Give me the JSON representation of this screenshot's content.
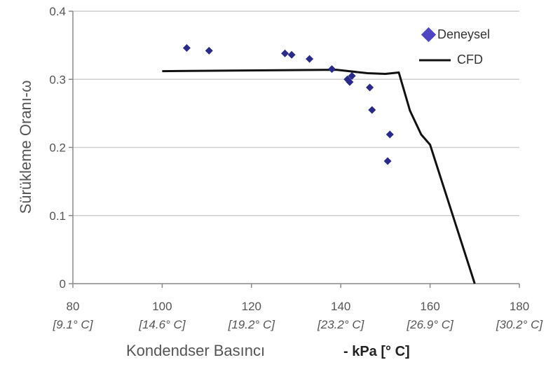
{
  "chart_data": {
    "type": "scatter+line",
    "xlabel": "Kondendser Basıncı",
    "xlabel_unit": "- kPa [° C]",
    "ylabel": "Sürükleme Oranı-ω",
    "xlim": [
      80,
      180
    ],
    "ylim": [
      0,
      0.4
    ],
    "grid": "horizontal",
    "legend_position": "top-right",
    "x_ticks": [
      {
        "value": 80,
        "label": "80",
        "sublabel": "[9.1° C]"
      },
      {
        "value": 100,
        "label": "100",
        "sublabel": "[14.6° C]"
      },
      {
        "value": 120,
        "label": "120",
        "sublabel": "[19.2° C]"
      },
      {
        "value": 140,
        "label": "140",
        "sublabel": "[23.2° C]"
      },
      {
        "value": 160,
        "label": "160",
        "sublabel": "[26.9° C]"
      },
      {
        "value": 180,
        "label": "180",
        "sublabel": "[30.2° C]"
      }
    ],
    "y_ticks": [
      {
        "value": 0,
        "label": "0"
      },
      {
        "value": 0.1,
        "label": "0.1"
      },
      {
        "value": 0.2,
        "label": "0.2"
      },
      {
        "value": 0.3,
        "label": "0.3"
      },
      {
        "value": 0.4,
        "label": "0.4"
      }
    ],
    "series": [
      {
        "name": "Deneysel",
        "kind": "scatter",
        "marker": "diamond",
        "color": "#2a2a8c",
        "points": [
          {
            "x": 105.5,
            "y": 0.346
          },
          {
            "x": 110.5,
            "y": 0.342
          },
          {
            "x": 127.5,
            "y": 0.338
          },
          {
            "x": 129.0,
            "y": 0.336
          },
          {
            "x": 133.0,
            "y": 0.33
          },
          {
            "x": 138.0,
            "y": 0.315
          },
          {
            "x": 141.5,
            "y": 0.3
          },
          {
            "x": 142.0,
            "y": 0.296
          },
          {
            "x": 142.5,
            "y": 0.305
          },
          {
            "x": 146.5,
            "y": 0.288
          },
          {
            "x": 147.0,
            "y": 0.255
          },
          {
            "x": 151.0,
            "y": 0.219
          },
          {
            "x": 150.5,
            "y": 0.18
          }
        ]
      },
      {
        "name": "CFD",
        "kind": "line",
        "color": "#111111",
        "points": [
          {
            "x": 100,
            "y": 0.312
          },
          {
            "x": 139,
            "y": 0.314
          },
          {
            "x": 146,
            "y": 0.309
          },
          {
            "x": 150,
            "y": 0.308
          },
          {
            "x": 153,
            "y": 0.31
          },
          {
            "x": 155.5,
            "y": 0.254
          },
          {
            "x": 158,
            "y": 0.219
          },
          {
            "x": 160,
            "y": 0.204
          },
          {
            "x": 170,
            "y": 0.0
          }
        ]
      }
    ]
  }
}
